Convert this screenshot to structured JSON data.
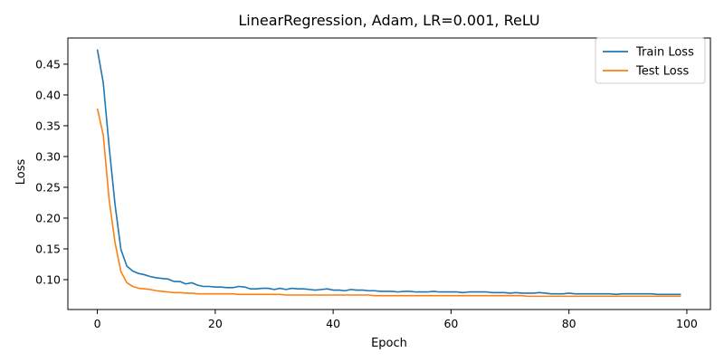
{
  "chart_data": {
    "type": "line",
    "title": "LinearRegression, Adam, LR=0.001, ReLU",
    "xlabel": "Epoch",
    "ylabel": "Loss",
    "xlim": [
      -5,
      104
    ],
    "ylim": [
      0.0515,
      0.4925
    ],
    "xticks": [
      0,
      20,
      40,
      60,
      80,
      100
    ],
    "yticks": [
      0.1,
      0.15,
      0.2,
      0.25,
      0.3,
      0.35,
      0.4,
      0.45
    ],
    "ytick_labels": [
      "0.10",
      "0.15",
      "0.20",
      "0.25",
      "0.30",
      "0.35",
      "0.40",
      "0.45"
    ],
    "grid": false,
    "legend_position": "top-right",
    "series": [
      {
        "name": "Train Loss",
        "color": "#1f77b4",
        "values": [
          0.474,
          0.42,
          0.316,
          0.222,
          0.149,
          0.122,
          0.114,
          0.11,
          0.108,
          0.105,
          0.103,
          0.102,
          0.101,
          0.097,
          0.097,
          0.093,
          0.095,
          0.091,
          0.089,
          0.089,
          0.088,
          0.088,
          0.087,
          0.087,
          0.089,
          0.088,
          0.085,
          0.085,
          0.086,
          0.086,
          0.084,
          0.086,
          0.084,
          0.086,
          0.085,
          0.085,
          0.084,
          0.083,
          0.084,
          0.085,
          0.083,
          0.083,
          0.082,
          0.084,
          0.083,
          0.083,
          0.082,
          0.082,
          0.081,
          0.081,
          0.081,
          0.08,
          0.081,
          0.081,
          0.08,
          0.08,
          0.08,
          0.081,
          0.08,
          0.08,
          0.08,
          0.08,
          0.079,
          0.08,
          0.08,
          0.08,
          0.08,
          0.079,
          0.079,
          0.079,
          0.078,
          0.079,
          0.078,
          0.078,
          0.078,
          0.079,
          0.078,
          0.077,
          0.077,
          0.077,
          0.078,
          0.077,
          0.077,
          0.077,
          0.077,
          0.077,
          0.077,
          0.077,
          0.076,
          0.077,
          0.077,
          0.077,
          0.077,
          0.077,
          0.077,
          0.076,
          0.076,
          0.076,
          0.076,
          0.076
        ]
      },
      {
        "name": "Test Loss",
        "color": "#ff7f0e",
        "values": [
          0.378,
          0.335,
          0.23,
          0.16,
          0.113,
          0.095,
          0.089,
          0.086,
          0.085,
          0.084,
          0.082,
          0.081,
          0.08,
          0.079,
          0.079,
          0.078,
          0.078,
          0.077,
          0.077,
          0.077,
          0.077,
          0.077,
          0.077,
          0.077,
          0.076,
          0.076,
          0.076,
          0.076,
          0.076,
          0.076,
          0.076,
          0.076,
          0.075,
          0.075,
          0.075,
          0.075,
          0.075,
          0.075,
          0.075,
          0.075,
          0.075,
          0.075,
          0.075,
          0.075,
          0.075,
          0.075,
          0.075,
          0.074,
          0.074,
          0.074,
          0.074,
          0.074,
          0.074,
          0.074,
          0.074,
          0.074,
          0.074,
          0.074,
          0.074,
          0.074,
          0.074,
          0.074,
          0.074,
          0.074,
          0.074,
          0.074,
          0.074,
          0.074,
          0.074,
          0.074,
          0.074,
          0.074,
          0.074,
          0.073,
          0.073,
          0.073,
          0.073,
          0.073,
          0.073,
          0.073,
          0.073,
          0.073,
          0.073,
          0.073,
          0.073,
          0.073,
          0.073,
          0.073,
          0.073,
          0.073,
          0.073,
          0.073,
          0.073,
          0.073,
          0.073,
          0.073,
          0.073,
          0.073,
          0.073,
          0.073
        ]
      }
    ]
  }
}
